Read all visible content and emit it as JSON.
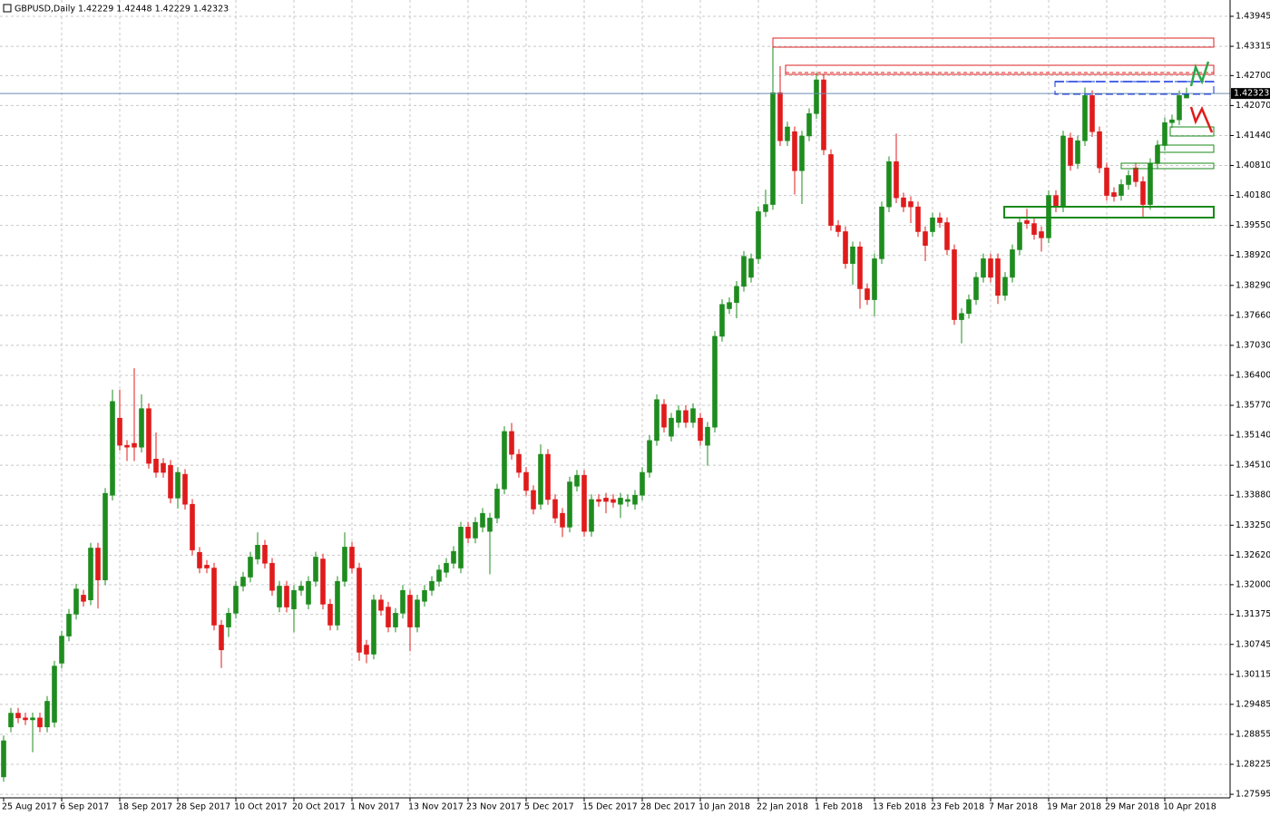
{
  "chart_data": {
    "type": "candlestick",
    "title": "GBPUSD,Daily  1.42229 1.42448 1.42229 1.42323",
    "categories": [
      "25 Aug 2017",
      null,
      null,
      null,
      null,
      null,
      null,
      null,
      "6 Sep 2017",
      null,
      null,
      null,
      null,
      null,
      null,
      null,
      "18 Sep 2017",
      null,
      null,
      null,
      null,
      null,
      null,
      null,
      "28 Sep 2017",
      null,
      null,
      null,
      null,
      null,
      null,
      null,
      "10 Oct 2017",
      null,
      null,
      null,
      null,
      null,
      null,
      null,
      "20 Oct 2017",
      null,
      null,
      null,
      null,
      null,
      null,
      null,
      "1 Nov 2017",
      null,
      null,
      null,
      null,
      null,
      null,
      null,
      "13 Nov 2017",
      null,
      null,
      null,
      null,
      null,
      null,
      null,
      "23 Nov 2017",
      null,
      null,
      null,
      null,
      null,
      null,
      null,
      "5 Dec 2017",
      null,
      null,
      null,
      null,
      null,
      null,
      null,
      "15 Dec 2017",
      null,
      null,
      null,
      null,
      null,
      null,
      null,
      "28 Dec 2017",
      null,
      null,
      null,
      null,
      null,
      null,
      null,
      "10 Jan 2018",
      null,
      null,
      null,
      null,
      null,
      null,
      null,
      "22 Jan 2018",
      null,
      null,
      null,
      null,
      null,
      null,
      null,
      "1 Feb 2018",
      null,
      null,
      null,
      null,
      null,
      null,
      null,
      "13 Feb 2018",
      null,
      null,
      null,
      null,
      null,
      null,
      null,
      "23 Feb 2018",
      null,
      null,
      null,
      null,
      null,
      null,
      null,
      "7 Mar 2018",
      null,
      null,
      null,
      null,
      null,
      null,
      null,
      "19 Mar 2018",
      null,
      null,
      null,
      null,
      null,
      null,
      null,
      "29 Mar 2018",
      null,
      null,
      null,
      null,
      null,
      null,
      null,
      "10 Apr 2018",
      null,
      null,
      null
    ],
    "open": [
      1.2796,
      1.2901,
      1.293,
      1.292,
      1.2916,
      1.292,
      1.2901,
      1.2911,
      1.3035,
      1.3092,
      1.3138,
      1.3178,
      1.3168,
      1.3277,
      1.321,
      1.3388,
      1.355,
      1.3493,
      1.3497,
      1.3489,
      1.357,
      1.3464,
      1.3455,
      1.3451,
      1.3382,
      1.3432,
      1.3369,
      1.3268,
      1.3241,
      1.3235,
      1.3115,
      1.3111,
      1.314,
      1.3197,
      1.3216,
      1.3254,
      1.3283,
      1.3245,
      1.3153,
      1.3197,
      1.3149,
      1.3188,
      1.3159,
      1.3207,
      1.3254,
      1.3159,
      1.3115,
      1.3207,
      1.3279,
      1.3235,
      1.3073,
      1.3054,
      1.3168,
      1.3153,
      1.3111,
      1.314,
      1.3178,
      1.3111,
      1.3165,
      1.3188,
      1.3207,
      1.3226,
      1.3245,
      1.3235,
      1.3321,
      1.3298,
      1.3321,
      1.3312,
      1.334,
      1.3401,
      1.3522,
      1.3474,
      1.3436,
      1.3398,
      1.3369,
      1.3474,
      1.3379,
      1.335,
      1.3321,
      1.3407,
      1.343,
      1.3312,
      1.3379,
      1.3382,
      1.3379,
      1.3369,
      1.3375,
      1.3369,
      1.3388,
      1.3436,
      1.3503,
      1.3579,
      1.3512,
      1.3541,
      1.3566,
      1.3541,
      1.355,
      1.3493,
      1.3531,
      1.3722,
      1.378,
      1.3793,
      1.3827,
      1.3846,
      1.3885,
      1.3984,
      1.3999,
      1.4234,
      1.4133,
      1.4152,
      1.407,
      1.4143,
      1.419,
      1.4261,
      1.4104,
      1.3955,
      1.3942,
      1.3875,
      1.391,
      1.3822,
      1.3799,
      1.3885,
      1.3994,
      1.4089,
      1.4013,
      1.4005,
      1.3994,
      1.3942,
      1.3942,
      1.3971,
      1.3961,
      1.3904,
      1.3757,
      1.377,
      1.3799,
      1.3846,
      1.3885,
      1.3885,
      1.3808,
      1.3846,
      1.3904,
      1.3965,
      1.3959,
      1.3942,
      1.3929,
      1.4018,
      1.3994,
      1.4139,
      1.4085,
      1.4133,
      1.4228,
      1.4152,
      1.4076,
      1.4024,
      1.4018,
      1.4041,
      1.4076,
      1.4047,
      1.3999,
      1.4085,
      1.4123,
      1.4171,
      1.4177,
      1.42229
    ],
    "high": [
      1.2883,
      1.2941,
      1.2941,
      1.2931,
      1.2931,
      1.2931,
      1.2966,
      1.304,
      1.3103,
      1.3149,
      1.3202,
      1.3189,
      1.3288,
      1.3288,
      1.3403,
      1.361,
      1.361,
      1.3504,
      1.3655,
      1.36,
      1.3581,
      1.352,
      1.3466,
      1.3462,
      1.3447,
      1.3443,
      1.338,
      1.3279,
      1.3252,
      1.3246,
      1.3126,
      1.3151,
      1.3208,
      1.3227,
      1.3269,
      1.331,
      1.3294,
      1.3256,
      1.3208,
      1.3208,
      1.3199,
      1.3208,
      1.3218,
      1.3269,
      1.3265,
      1.317,
      1.3218,
      1.331,
      1.329,
      1.3246,
      1.3084,
      1.3179,
      1.3179,
      1.3164,
      1.3151,
      1.3199,
      1.3189,
      1.3179,
      1.3199,
      1.3218,
      1.3242,
      1.3256,
      1.3281,
      1.3332,
      1.3332,
      1.3342,
      1.3361,
      1.3351,
      1.3412,
      1.3533,
      1.354,
      1.3485,
      1.3447,
      1.3409,
      1.3495,
      1.3485,
      1.339,
      1.3361,
      1.3427,
      1.3441,
      1.3441,
      1.339,
      1.339,
      1.3393,
      1.339,
      1.3393,
      1.339,
      1.3399,
      1.3447,
      1.3514,
      1.36,
      1.359,
      1.3561,
      1.3577,
      1.3577,
      1.3581,
      1.3561,
      1.3542,
      1.3733,
      1.38,
      1.3804,
      1.3838,
      1.3901,
      1.3896,
      1.3995,
      1.403,
      1.4343,
      1.429,
      1.4173,
      1.4163,
      1.4154,
      1.4201,
      1.4276,
      1.4272,
      1.4115,
      1.3966,
      1.3953,
      1.3921,
      1.3921,
      1.3833,
      1.3896,
      1.4005,
      1.41,
      1.4148,
      1.4024,
      1.4016,
      1.4005,
      1.3953,
      1.3982,
      1.3982,
      1.3972,
      1.3915,
      1.3781,
      1.381,
      1.3857,
      1.3896,
      1.3896,
      1.3896,
      1.3857,
      1.3915,
      1.3972,
      1.399,
      1.397,
      1.3953,
      1.4029,
      1.4029,
      1.4154,
      1.415,
      1.4144,
      1.4245,
      1.4239,
      1.4163,
      1.4087,
      1.4035,
      1.4052,
      1.4071,
      1.4087,
      1.4058,
      1.4096,
      1.4134,
      1.4182,
      1.4188,
      1.4239,
      1.42448
    ],
    "low": [
      1.2786,
      1.289,
      1.2909,
      1.2905,
      1.2848,
      1.289,
      1.289,
      1.29,
      1.3024,
      1.3081,
      1.3127,
      1.3154,
      1.3157,
      1.315,
      1.3199,
      1.3377,
      1.3482,
      1.346,
      1.346,
      1.3478,
      1.3444,
      1.3425,
      1.3425,
      1.3371,
      1.336,
      1.3358,
      1.3262,
      1.3224,
      1.3224,
      1.3104,
      1.3025,
      1.309,
      1.3129,
      1.3186,
      1.3205,
      1.3243,
      1.3234,
      1.3177,
      1.3142,
      1.3142,
      1.31,
      1.3177,
      1.3148,
      1.3196,
      1.3148,
      1.3104,
      1.3104,
      1.3196,
      1.3224,
      1.304,
      1.3035,
      1.3043,
      1.3135,
      1.31,
      1.31,
      1.3129,
      1.306,
      1.31,
      1.3154,
      1.3177,
      1.3196,
      1.3215,
      1.3234,
      1.3224,
      1.3287,
      1.3287,
      1.331,
      1.3222,
      1.3329,
      1.339,
      1.3463,
      1.3425,
      1.3387,
      1.3348,
      1.3358,
      1.3368,
      1.3329,
      1.33,
      1.331,
      1.3396,
      1.3301,
      1.3301,
      1.3364,
      1.335,
      1.3362,
      1.334,
      1.3364,
      1.3358,
      1.3377,
      1.3425,
      1.3492,
      1.352,
      1.3501,
      1.353,
      1.353,
      1.353,
      1.3492,
      1.345,
      1.352,
      1.3711,
      1.3769,
      1.376,
      1.3816,
      1.3835,
      1.3874,
      1.3973,
      1.3988,
      1.4122,
      1.4122,
      1.402,
      1.4,
      1.4132,
      1.4179,
      1.4103,
      1.3944,
      1.3931,
      1.3864,
      1.383,
      1.378,
      1.3788,
      1.3764,
      1.3874,
      1.3983,
      1.4002,
      1.3983,
      1.396,
      1.3931,
      1.388,
      1.3931,
      1.395,
      1.3893,
      1.3746,
      1.3707,
      1.3759,
      1.3788,
      1.3835,
      1.3835,
      1.379,
      1.3797,
      1.3835,
      1.3893,
      1.3948,
      1.3925,
      1.39,
      1.3918,
      1.3983,
      1.3983,
      1.407,
      1.4074,
      1.4122,
      1.4141,
      1.4065,
      1.4007,
      1.4005,
      1.4007,
      1.403,
      1.4036,
      1.397,
      1.3988,
      1.4074,
      1.4112,
      1.416,
      1.4166,
      1.42229
    ],
    "close": [
      1.2872,
      1.293,
      1.292,
      1.2916,
      1.292,
      1.2901,
      1.2955,
      1.3029,
      1.3092,
      1.3138,
      1.3191,
      1.3165,
      1.3277,
      1.321,
      1.3392,
      1.3585,
      1.3493,
      1.3489,
      1.3489,
      1.357,
      1.3455,
      1.3436,
      1.3436,
      1.3382,
      1.3436,
      1.3369,
      1.3273,
      1.3235,
      1.3235,
      1.3115,
      1.3063,
      1.314,
      1.3197,
      1.3216,
      1.3258,
      1.3283,
      1.3245,
      1.3188,
      1.3197,
      1.3153,
      1.3188,
      1.3197,
      1.3207,
      1.3258,
      1.3159,
      1.3115,
      1.3207,
      1.3279,
      1.3235,
      1.3058,
      1.3054,
      1.3168,
      1.3146,
      1.3111,
      1.314,
      1.3188,
      1.3111,
      1.3168,
      1.3188,
      1.3207,
      1.3231,
      1.3245,
      1.327,
      1.3321,
      1.3298,
      1.3331,
      1.335,
      1.334,
      1.3401,
      1.3522,
      1.3474,
      1.3436,
      1.3398,
      1.3359,
      1.3474,
      1.3379,
      1.334,
      1.3321,
      1.3416,
      1.343,
      1.3312,
      1.3379,
      1.3375,
      1.3375,
      1.3373,
      1.3382,
      1.3379,
      1.3388,
      1.3436,
      1.3503,
      1.3589,
      1.3531,
      1.355,
      1.3566,
      1.3541,
      1.357,
      1.3503,
      1.3531,
      1.3722,
      1.3789,
      1.3793,
      1.3827,
      1.389,
      1.3885,
      1.3984,
      1.3999,
      1.4234,
      1.4133,
      1.4162,
      1.407,
      1.4143,
      1.419,
      1.4261,
      1.4114,
      1.3955,
      1.3942,
      1.3875,
      1.391,
      1.3822,
      1.3799,
      1.3885,
      1.3994,
      1.4089,
      1.4013,
      1.3994,
      1.3994,
      1.3942,
      1.3913,
      1.3971,
      1.3961,
      1.3904,
      1.3757,
      1.377,
      1.3799,
      1.3846,
      1.3885,
      1.3846,
      1.3808,
      1.3846,
      1.3904,
      1.3961,
      1.3959,
      1.3936,
      1.3929,
      1.4018,
      1.3994,
      1.4143,
      1.4081,
      1.4133,
      1.4228,
      1.4152,
      1.4076,
      1.4018,
      1.4016,
      1.4041,
      1.406,
      1.4047,
      1.3999,
      1.4085,
      1.4123,
      1.4171,
      1.4177,
      1.4228,
      1.42323
    ],
    "up_color": "#1e8c1e",
    "down_color": "#e01b1b",
    "last_price": 1.42323,
    "ylim": [
      1.2752,
      1.4425
    ],
    "yticks": [
      1.43945,
      1.43315,
      {
        "value": 1.427,
        "label": "1.42700"
      },
      {
        "value": 1.4207,
        "label": "1.42070"
      },
      {
        "value": 1.4144,
        "label": "1.41440"
      },
      {
        "value": 1.4081,
        "label": "1.40810"
      },
      {
        "value": 1.4018,
        "label": "1.40180"
      },
      {
        "value": 1.3955,
        "label": "1.39550"
      },
      {
        "value": 1.3892,
        "label": "1.38920"
      },
      {
        "value": 1.3829,
        "label": "1.38290"
      },
      {
        "value": 1.3766,
        "label": "1.37660"
      },
      {
        "value": 1.3703,
        "label": "1.37030"
      },
      {
        "value": 1.364,
        "label": "1.36400"
      },
      {
        "value": 1.3577,
        "label": "1.35770"
      },
      {
        "value": 1.3514,
        "label": "1.35140"
      },
      {
        "value": 1.3451,
        "label": "1.34510"
      },
      {
        "value": 1.3388,
        "label": "1.33880"
      },
      {
        "value": 1.3325,
        "label": "1.33250"
      },
      {
        "value": 1.3262,
        "label": "1.32620"
      },
      {
        "value": 1.32,
        "label": "1.32000"
      },
      1.31375,
      1.30745,
      1.30115,
      1.29485,
      1.28855,
      1.28225,
      1.27595
    ],
    "grid": true
  }
}
